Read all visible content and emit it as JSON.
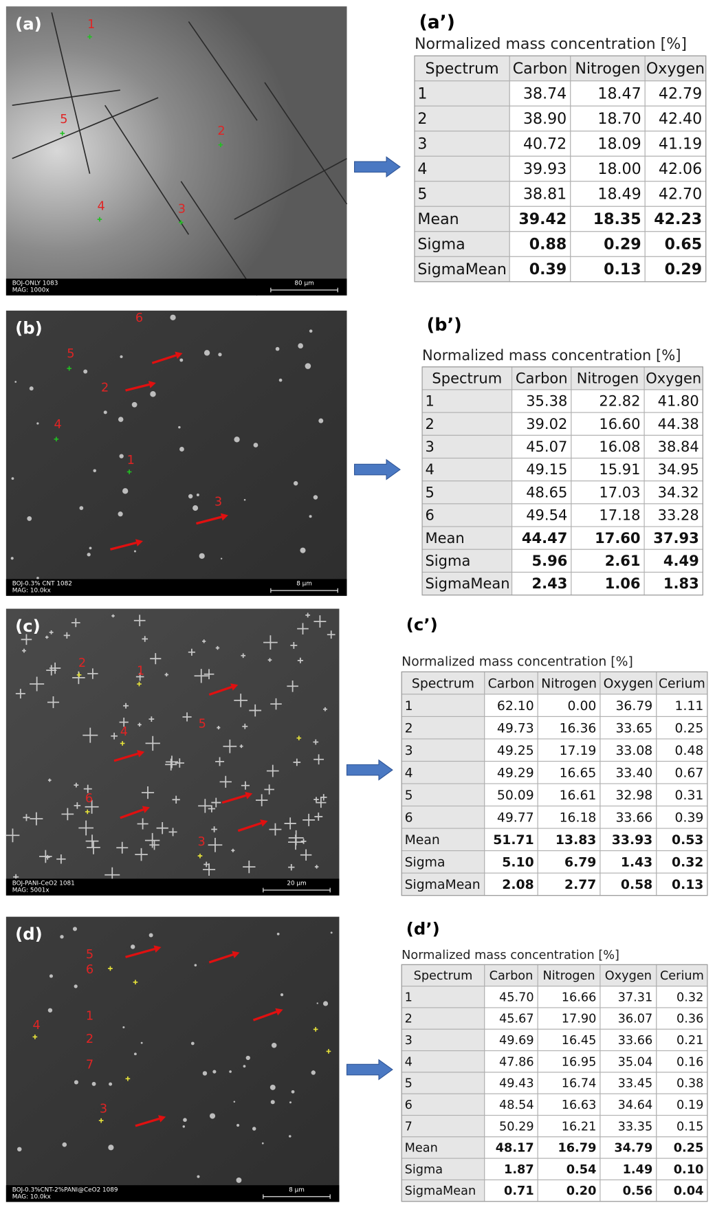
{
  "panels": [
    {
      "image": {
        "label": "(a)",
        "points": [
          "1",
          "5",
          "2",
          "4",
          "3"
        ],
        "info_line1": "BOJ-ONLY 1083",
        "info_line2": "MAG: 1000x",
        "scale": "80 µm"
      },
      "table": {
        "label": "(a’)",
        "caption": "Normalized mass concentration [%]",
        "header": [
          "Spectrum",
          "Carbon",
          "Nitrogen",
          "Oxygen"
        ],
        "rows": [
          [
            "1",
            "38.74",
            "18.47",
            "42.79"
          ],
          [
            "2",
            "38.90",
            "18.70",
            "42.40"
          ],
          [
            "3",
            "40.72",
            "18.09",
            "41.19"
          ],
          [
            "4",
            "39.93",
            "18.00",
            "42.06"
          ],
          [
            "5",
            "38.81",
            "18.49",
            "42.70"
          ],
          [
            "Mean",
            "39.42",
            "18.35",
            "42.23"
          ],
          [
            "Sigma",
            "0.88",
            "0.29",
            "0.65"
          ],
          [
            "SigmaMean",
            "0.39",
            "0.13",
            "0.29"
          ]
        ]
      }
    },
    {
      "image": {
        "label": "(b)",
        "points": [
          "6",
          "5",
          "2",
          "4",
          "1",
          "3"
        ],
        "info_line1": "BOJ-0.3% CNT 1082",
        "info_line2": "MAG: 10.0kx",
        "scale": "8 µm"
      },
      "table": {
        "label": "(b’)",
        "caption": "Normalized mass concentration [%]",
        "header": [
          "Spectrum",
          "Carbon",
          "Nitrogen",
          "Oxygen"
        ],
        "rows": [
          [
            "1",
            "35.38",
            "22.82",
            "41.80"
          ],
          [
            "2",
            "39.02",
            "16.60",
            "44.38"
          ],
          [
            "3",
            "45.07",
            "16.08",
            "38.84"
          ],
          [
            "4",
            "49.15",
            "15.91",
            "34.95"
          ],
          [
            "5",
            "48.65",
            "17.03",
            "34.32"
          ],
          [
            "6",
            "49.54",
            "17.18",
            "33.28"
          ],
          [
            "Mean",
            "44.47",
            "17.60",
            "37.93"
          ],
          [
            "Sigma",
            "5.96",
            "2.61",
            "4.49"
          ],
          [
            "SigmaMean",
            "2.43",
            "1.06",
            "1.83"
          ]
        ]
      }
    },
    {
      "image": {
        "label": "(c)",
        "points": [
          "2",
          "1",
          "5",
          "4",
          "6",
          "3"
        ],
        "info_line1": "BOJ-PANI-CeO2 1081",
        "info_line2": "MAG: 5001x",
        "scale": "20 µm"
      },
      "table": {
        "label": "(c’)",
        "caption": "Normalized mass concentration [%]",
        "header": [
          "Spectrum",
          "Carbon",
          "Nitrogen",
          "Oxygen",
          "Cerium"
        ],
        "rows": [
          [
            "1",
            "62.10",
            "0.00",
            "36.79",
            "1.11"
          ],
          [
            "2",
            "49.73",
            "16.36",
            "33.65",
            "0.25"
          ],
          [
            "3",
            "49.25",
            "17.19",
            "33.08",
            "0.48"
          ],
          [
            "4",
            "49.29",
            "16.65",
            "33.40",
            "0.67"
          ],
          [
            "5",
            "50.09",
            "16.61",
            "32.98",
            "0.31"
          ],
          [
            "6",
            "49.77",
            "16.18",
            "33.66",
            "0.39"
          ],
          [
            "Mean",
            "51.71",
            "13.83",
            "33.93",
            "0.53"
          ],
          [
            "Sigma",
            "5.10",
            "6.79",
            "1.43",
            "0.32"
          ],
          [
            "SigmaMean",
            "2.08",
            "2.77",
            "0.58",
            "0.13"
          ]
        ]
      }
    },
    {
      "image": {
        "label": "(d)",
        "points": [
          "5",
          "6",
          "1",
          "2",
          "7",
          "4",
          "3"
        ],
        "info_line1": "BOJ-0.3%CNT-2%PANI@CeO2 1089",
        "info_line2": "MAG: 10.0kx",
        "scale": "8 µm"
      },
      "table": {
        "label": "(d’)",
        "caption": "Normalized mass concentration [%]",
        "header": [
          "Spectrum",
          "Carbon",
          "Nitrogen",
          "Oxygen",
          "Cerium"
        ],
        "rows": [
          [
            "1",
            "45.70",
            "16.66",
            "37.31",
            "0.32"
          ],
          [
            "2",
            "45.67",
            "17.90",
            "36.07",
            "0.36"
          ],
          [
            "3",
            "49.69",
            "16.45",
            "33.66",
            "0.21"
          ],
          [
            "4",
            "47.86",
            "16.95",
            "35.04",
            "0.16"
          ],
          [
            "5",
            "49.43",
            "16.74",
            "33.45",
            "0.38"
          ],
          [
            "6",
            "48.54",
            "16.63",
            "34.64",
            "0.19"
          ],
          [
            "7",
            "50.29",
            "16.21",
            "33.35",
            "0.15"
          ],
          [
            "Mean",
            "48.17",
            "16.79",
            "34.79",
            "0.25"
          ],
          [
            "Sigma",
            "1.87",
            "0.54",
            "1.49",
            "0.10"
          ],
          [
            "SigmaMean",
            "0.71",
            "0.20",
            "0.56",
            "0.04"
          ]
        ]
      }
    }
  ]
}
